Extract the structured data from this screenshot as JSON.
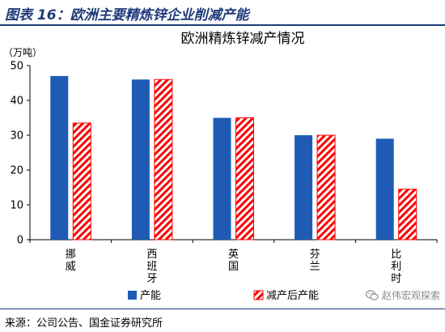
{
  "figure": {
    "label": "图表 16：欧洲主要精炼锌企业削减产能",
    "source": "来源：公司公告、国金证券研究所",
    "watermark": "赵伟宏观探索",
    "watermark_icon": "wechat-icon"
  },
  "chart_data": {
    "type": "bar",
    "title": "欧洲精炼锌减产情况",
    "unit_label": "（万吨）",
    "categories": [
      "挪威",
      "西班牙",
      "英国",
      "芬兰",
      "比利时"
    ],
    "series": [
      {
        "name": "产能",
        "values": [
          47,
          46,
          35,
          30,
          29
        ],
        "color": "#1f5bb5",
        "pattern": "solid"
      },
      {
        "name": "减产后产能",
        "values": [
          33.5,
          46,
          35,
          30,
          14.5
        ],
        "color": "#ff0000",
        "pattern": "diagonal-hatch"
      }
    ],
    "ylim": [
      0,
      50
    ],
    "yticks": [
      0,
      10,
      20,
      30,
      40,
      50
    ],
    "grid": false,
    "legend_position": "bottom"
  }
}
